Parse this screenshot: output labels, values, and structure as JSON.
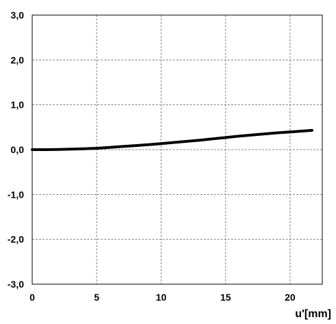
{
  "chart_data": {
    "type": "line",
    "title": "",
    "xlabel": "u'[mm]",
    "ylabel": "",
    "xlim": [
      0,
      22.5
    ],
    "ylim": [
      -3.0,
      3.0
    ],
    "grid": true,
    "x_ticks": [
      0,
      5,
      10,
      15,
      20
    ],
    "x_tick_labels": [
      "0",
      "5",
      "10",
      "15",
      "20"
    ],
    "y_ticks": [
      3.0,
      2.0,
      1.0,
      0.0,
      -1.0,
      -2.0,
      -3.0
    ],
    "y_tick_labels": [
      "3,0",
      "2,0",
      "1,0",
      "0,0",
      "-1,0",
      "-2,0",
      "-3,0"
    ],
    "series": [
      {
        "name": "",
        "x": [
          0,
          1,
          2,
          3,
          4,
          5,
          6,
          7,
          8,
          9,
          10,
          11,
          12,
          13,
          14,
          15,
          16,
          17,
          18,
          19,
          20,
          21,
          21.7
        ],
        "y": [
          0.0,
          0.0,
          0.005,
          0.01,
          0.02,
          0.03,
          0.05,
          0.07,
          0.09,
          0.11,
          0.135,
          0.16,
          0.185,
          0.21,
          0.24,
          0.27,
          0.3,
          0.325,
          0.35,
          0.375,
          0.395,
          0.415,
          0.43
        ]
      }
    ]
  }
}
